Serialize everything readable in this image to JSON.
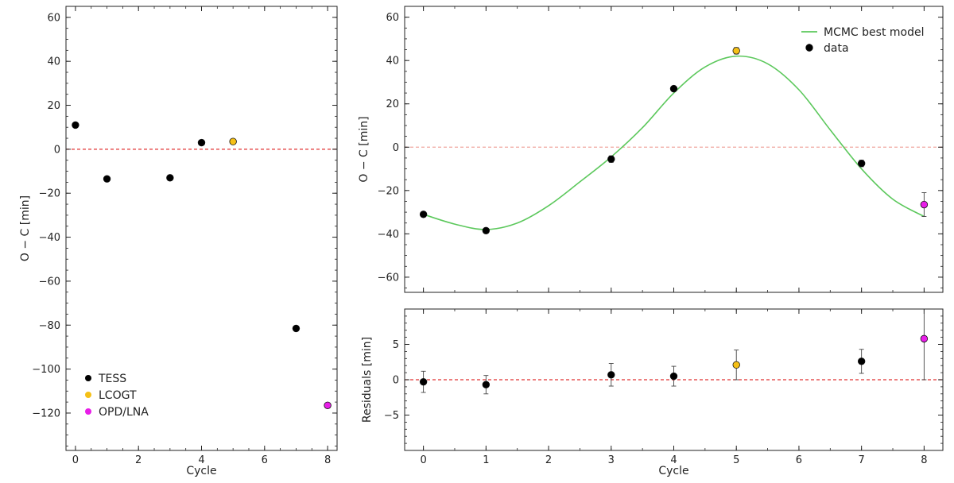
{
  "chart_data": [
    {
      "type": "scatter",
      "id": "left",
      "xlabel": "Cycle",
      "ylabel": "O − C [min]",
      "xlim": [
        -0.3,
        8.3
      ],
      "ylim": [
        -137,
        65
      ],
      "xticks": [
        0,
        2,
        4,
        6,
        8
      ],
      "yticks": [
        60,
        40,
        20,
        0,
        -20,
        -40,
        -60,
        -80,
        -100,
        -120
      ],
      "ytick_labels": [
        "60",
        "40",
        "20",
        "0",
        "−20",
        "−40",
        "−60",
        "−80",
        "−100",
        "−120"
      ],
      "reference_line": {
        "y": 0,
        "color": "#e03030",
        "style": "dashed"
      },
      "legend_placement": "lower-left",
      "series": [
        {
          "name": "TESS",
          "color": "#000000",
          "points": [
            {
              "x": 0,
              "y": 11
            },
            {
              "x": 1,
              "y": -13.5
            },
            {
              "x": 3,
              "y": -13
            },
            {
              "x": 4,
              "y": 3
            },
            {
              "x": 7,
              "y": -81.5
            }
          ]
        },
        {
          "name": "LCOGT",
          "color": "#f5c016",
          "points": [
            {
              "x": 5,
              "y": 3.5
            }
          ]
        },
        {
          "name": "OPD/LNA",
          "color": "#e81ee8",
          "points": [
            {
              "x": 8,
              "y": -116.5
            }
          ]
        }
      ]
    },
    {
      "type": "scatter",
      "id": "top-right",
      "xlabel": "",
      "ylabel": "O − C [min]",
      "xlim": [
        -0.3,
        8.3
      ],
      "ylim": [
        -67,
        65
      ],
      "xticks": [
        0,
        1,
        2,
        3,
        4,
        5,
        6,
        7,
        8
      ],
      "yticks": [
        60,
        40,
        20,
        0,
        -20,
        -40,
        -60
      ],
      "ytick_labels": [
        "60",
        "40",
        "20",
        "0",
        "−20",
        "−40",
        "−60"
      ],
      "reference_line": {
        "y": 0,
        "color": "#f0a8a0",
        "style": "dashed"
      },
      "legend_placement": "top-right",
      "legend": [
        "MCMC best model",
        "data"
      ],
      "model": {
        "name": "MCMC best model",
        "color": "#5cc85c",
        "curve": [
          [
            0,
            -31
          ],
          [
            0.5,
            -35.5
          ],
          [
            1,
            -38
          ],
          [
            1.5,
            -35
          ],
          [
            2,
            -27
          ],
          [
            2.5,
            -16
          ],
          [
            3,
            -4.5
          ],
          [
            3.5,
            9
          ],
          [
            4,
            25
          ],
          [
            4.5,
            37
          ],
          [
            5,
            42
          ],
          [
            5.5,
            38.5
          ],
          [
            6,
            26.5
          ],
          [
            6.5,
            8
          ],
          [
            7,
            -10
          ],
          [
            7.5,
            -24
          ],
          [
            8,
            -32
          ]
        ]
      },
      "series": [
        {
          "name": "data",
          "points": [
            {
              "x": 0,
              "y": -31,
              "err": 1,
              "color": "#000000"
            },
            {
              "x": 1,
              "y": -38.5,
              "err": 1,
              "color": "#000000"
            },
            {
              "x": 3,
              "y": -5.5,
              "err": 1.5,
              "color": "#000000"
            },
            {
              "x": 4,
              "y": 27,
              "err": 1,
              "color": "#000000"
            },
            {
              "x": 5,
              "y": 44.5,
              "err": 1.5,
              "color": "#f5c016"
            },
            {
              "x": 7,
              "y": -7.5,
              "err": 1.5,
              "color": "#000000"
            },
            {
              "x": 8,
              "y": -26.5,
              "err": 5.5,
              "color": "#e81ee8"
            }
          ]
        }
      ]
    },
    {
      "type": "scatter",
      "id": "bottom-right",
      "xlabel": "Cycle",
      "ylabel": "Residuals [min]",
      "xlim": [
        -0.3,
        8.3
      ],
      "ylim": [
        -10,
        10
      ],
      "xticks": [
        0,
        1,
        2,
        3,
        4,
        5,
        6,
        7,
        8
      ],
      "yticks": [
        5,
        0,
        -5
      ],
      "ytick_labels": [
        "5",
        "0",
        "−5"
      ],
      "reference_line": {
        "y": 0,
        "color": "#e03030",
        "style": "dashed"
      },
      "series": [
        {
          "name": "residuals",
          "points": [
            {
              "x": 0,
              "y": -0.3,
              "err": 1.5,
              "color": "#000000"
            },
            {
              "x": 1,
              "y": -0.7,
              "err": 1.3,
              "color": "#000000"
            },
            {
              "x": 3,
              "y": 0.7,
              "err": 1.6,
              "color": "#000000"
            },
            {
              "x": 4,
              "y": 0.5,
              "err": 1.4,
              "color": "#000000"
            },
            {
              "x": 5,
              "y": 2.1,
              "err": 2.1,
              "color": "#f5c016"
            },
            {
              "x": 7,
              "y": 2.6,
              "err": 1.7,
              "color": "#000000"
            },
            {
              "x": 8,
              "y": 5.8,
              "err": 5.8,
              "color": "#e81ee8"
            }
          ]
        }
      ]
    }
  ]
}
